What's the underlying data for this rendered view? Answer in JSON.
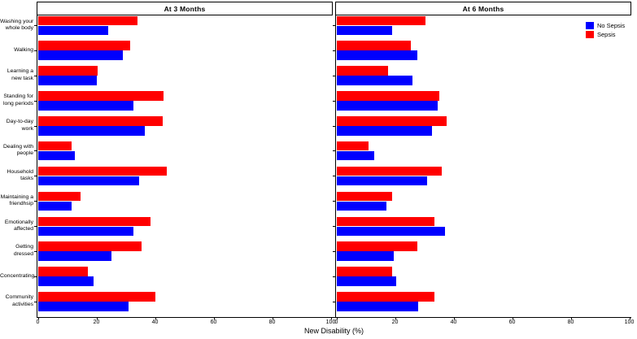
{
  "legend": {
    "items": [
      {
        "label": "No Sepsis",
        "color": "#0000ff"
      },
      {
        "label": "Sepsis",
        "color": "#ff0000"
      }
    ]
  },
  "chart_data": {
    "type": "bar",
    "orientation": "horizontal",
    "xlabel": "New Disability (%)",
    "xlim": [
      0,
      100
    ],
    "xticks": [
      0,
      20,
      40,
      60,
      80,
      100
    ],
    "grid": false,
    "legend_position": "top-right",
    "categories_top_to_bottom": [
      [
        "Washing your",
        "whole body"
      ],
      [
        "Walking"
      ],
      [
        "Learning a",
        "new task"
      ],
      [
        "Standing for",
        "long periods"
      ],
      [
        "Day-to-day",
        "work"
      ],
      [
        "Dealing with",
        "people"
      ],
      [
        "Household",
        "tasks"
      ],
      [
        "Maintaining a",
        "friendhsip"
      ],
      [
        "Emotionally",
        "affected"
      ],
      [
        "Getting",
        "dressed"
      ],
      [
        "Concentrating"
      ],
      [
        "Community",
        "activities"
      ]
    ],
    "panels": [
      {
        "title": "At 3 Months",
        "series": [
          {
            "name": "Sepsis",
            "color": "#ff0000",
            "values": [
              34,
              31.5,
              20.5,
              43,
              42.5,
              11.5,
              44,
              14.5,
              38.5,
              35.5,
              17,
              40
            ]
          },
          {
            "name": "No Sepsis",
            "color": "#0000ff",
            "values": [
              24,
              29,
              20,
              32.5,
              36.5,
              12.5,
              34.5,
              11.5,
              32.5,
              25,
              19,
              31
            ]
          }
        ]
      },
      {
        "title": "At 6 Months",
        "series": [
          {
            "name": "Sepsis",
            "color": "#ff0000",
            "values": [
              30.5,
              25.5,
              17.5,
              35,
              37.5,
              11,
              36,
              19,
              33.5,
              27.5,
              19,
              33.5
            ]
          },
          {
            "name": "No Sepsis",
            "color": "#0000ff",
            "values": [
              19,
              27.5,
              26,
              34.5,
              32.5,
              13,
              31,
              17,
              37,
              19.5,
              20.5,
              28
            ]
          }
        ]
      }
    ]
  }
}
